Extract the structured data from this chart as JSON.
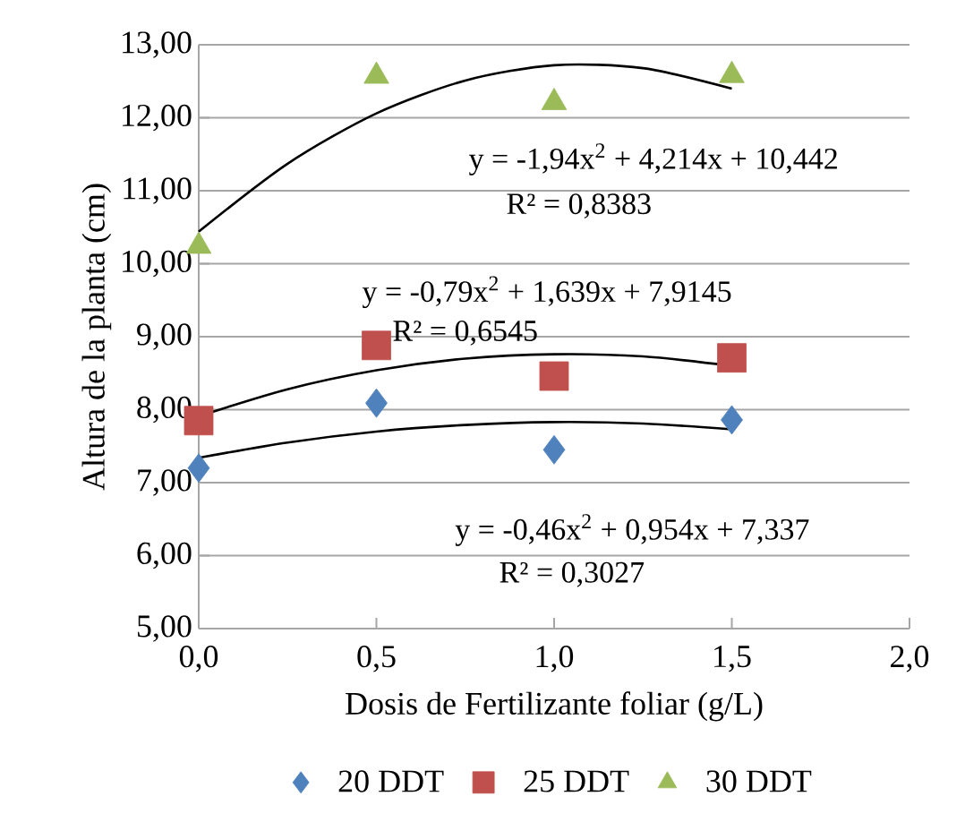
{
  "chart_data": {
    "type": "scatter",
    "xlabel": "Dosis de Fertilizante foliar  (g/L)",
    "ylabel": "Altura de la planta (cm)",
    "xlim": [
      0,
      2
    ],
    "xticks": [
      {
        "value": 0,
        "label": "0,0"
      },
      {
        "value": 0.5,
        "label": "0,5"
      },
      {
        "value": 1,
        "label": "1,0"
      },
      {
        "value": 1.5,
        "label": "1,5"
      },
      {
        "value": 2,
        "label": "2,0"
      }
    ],
    "ylim": [
      5,
      13
    ],
    "yticks": [
      {
        "value": 5,
        "label": "5,00"
      },
      {
        "value": 6,
        "label": "6,00"
      },
      {
        "value": 7,
        "label": "7,00"
      },
      {
        "value": 8,
        "label": "8,00"
      },
      {
        "value": 9,
        "label": "9,00"
      },
      {
        "value": 10,
        "label": "10,00"
      },
      {
        "value": 11,
        "label": "11,00"
      },
      {
        "value": 12,
        "label": "12,00"
      },
      {
        "value": 13,
        "label": "13,00"
      }
    ],
    "grid": "y",
    "legend": "bottom",
    "series": [
      {
        "name": "20 DDT",
        "color": "#4f81bd",
        "marker": "diamond",
        "x": [
          0,
          0.5,
          1,
          1.5
        ],
        "values": [
          7.2,
          8.09,
          7.45,
          7.86
        ]
      },
      {
        "name": "25 DDT",
        "color": "#c0504d",
        "marker": "square",
        "x": [
          0,
          0.5,
          1,
          1.5
        ],
        "values": [
          7.85,
          8.88,
          8.46,
          8.71
        ]
      },
      {
        "name": "30 DDT",
        "color": "#9bbb59",
        "marker": "triangle",
        "x": [
          0,
          0.5,
          1,
          1.5
        ],
        "values": [
          10.24,
          12.57,
          12.21,
          12.58
        ]
      },
      {
        "type": "line",
        "color": "#000000",
        "marker": "none",
        "x": [
          0,
          0.25,
          0.5,
          0.75,
          1,
          1.25,
          1.5
        ],
        "values": [
          7.34,
          7.55,
          7.7,
          7.79,
          7.83,
          7.81,
          7.73
        ]
      },
      {
        "type": "line",
        "color": "#000000",
        "marker": "none",
        "x": [
          0,
          0.25,
          0.5,
          0.75,
          1,
          1.25,
          1.5
        ],
        "values": [
          7.91,
          8.28,
          8.54,
          8.7,
          8.76,
          8.73,
          8.6
        ]
      },
      {
        "type": "line",
        "color": "#000000",
        "marker": "none",
        "x": [
          0,
          0.25,
          0.5,
          0.75,
          1,
          1.25,
          1.5
        ],
        "values": [
          10.44,
          11.37,
          12.06,
          12.51,
          12.72,
          12.68,
          12.4
        ]
      }
    ],
    "annotations": [
      "y = -1,94x$^{2}$ + 4,214x + 10,442",
      "R² = 0,8383",
      "y = -0,79x$^{2}$ + 1,639x + 7,9145",
      "R² = 0,6545",
      "y = -0,46x$^{2}$ + 0,954x + 7,337",
      "R² = 0,3027"
    ]
  }
}
